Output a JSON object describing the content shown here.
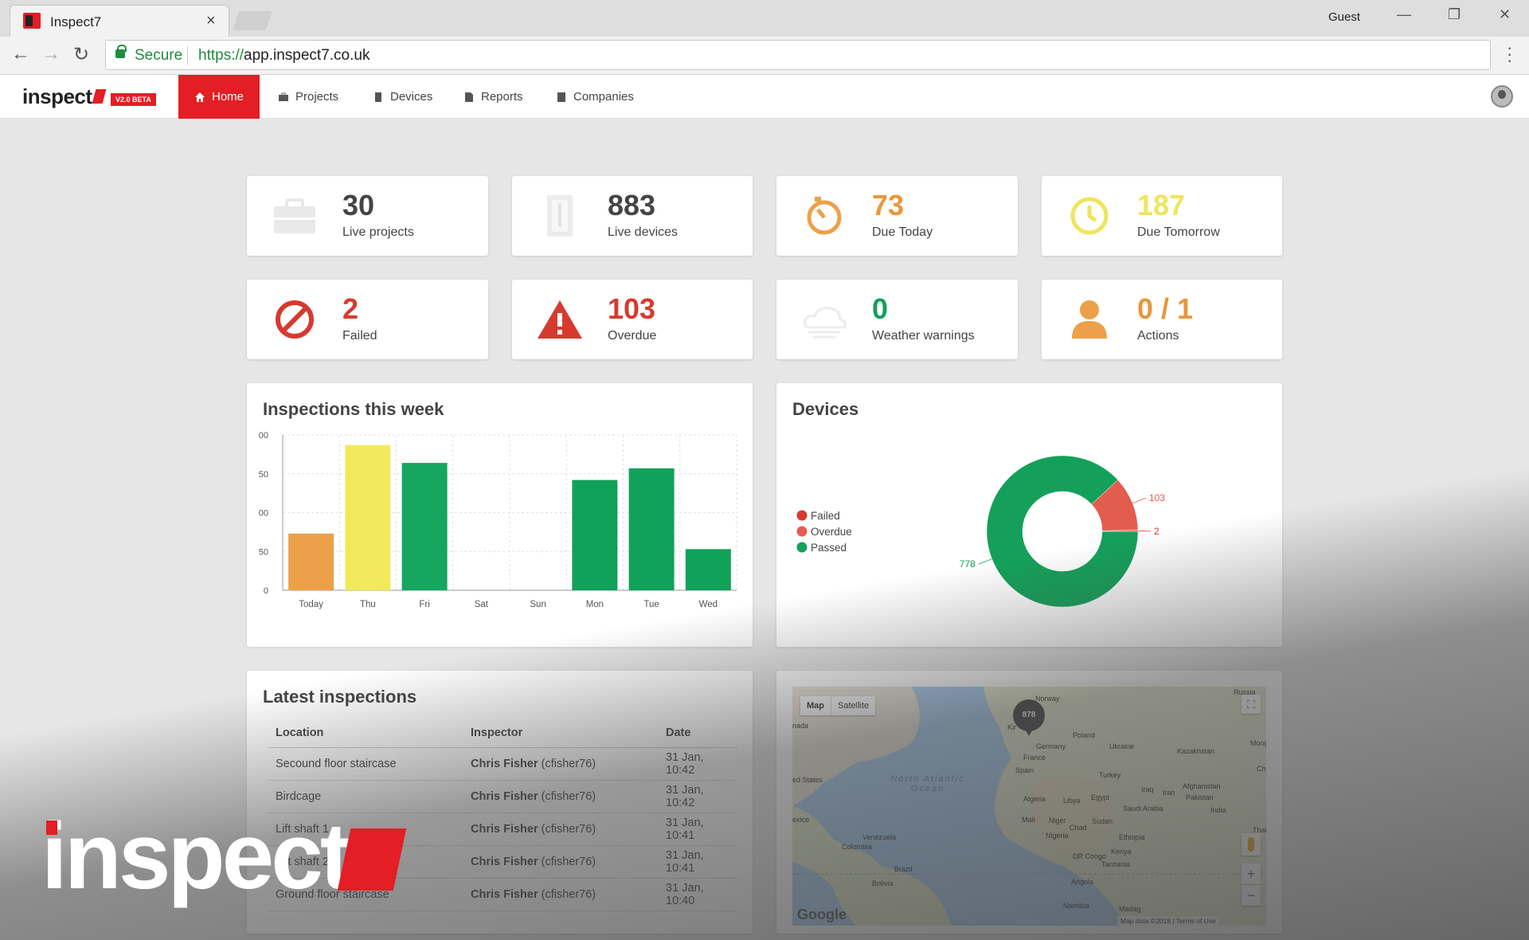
{
  "browser": {
    "tab_title": "Inspect7",
    "tab_close": "×",
    "profile": "Guest",
    "secure_label": "Secure",
    "url_scheme": "https://",
    "url_host": "app.inspect7.co.uk"
  },
  "app": {
    "logo": "inspect",
    "beta": "V2.0 BETA",
    "nav": [
      {
        "label": "Home",
        "icon": "home-icon",
        "active": true
      },
      {
        "label": "Projects",
        "icon": "briefcase-icon"
      },
      {
        "label": "Devices",
        "icon": "device-icon"
      },
      {
        "label": "Reports",
        "icon": "file-icon"
      },
      {
        "label": "Companies",
        "icon": "building-icon"
      }
    ]
  },
  "stats": [
    {
      "value": "30",
      "label": "Live projects",
      "icon": "briefcase-icon",
      "color": "#444444"
    },
    {
      "value": "883",
      "label": "Live devices",
      "icon": "device-icon",
      "color": "#444444"
    },
    {
      "value": "73",
      "label": "Due Today",
      "icon": "timer-icon",
      "color": "#e8973a"
    },
    {
      "value": "187",
      "label": "Due Tomorrow",
      "icon": "clock-icon",
      "color": "#efe55d"
    },
    {
      "value": "2",
      "label": "Failed",
      "icon": "ban-icon",
      "color": "#d63a2f"
    },
    {
      "value": "103",
      "label": "Overdue",
      "icon": "warning-icon",
      "color": "#d63a2f"
    },
    {
      "value": "0",
      "label": "Weather warnings",
      "icon": "cloud-icon",
      "color": "#12a05a"
    },
    {
      "value": "0 / 1",
      "label": "Actions",
      "icon": "user-icon",
      "color": "#e8973a"
    }
  ],
  "inspections_week": {
    "title": "Inspections this week"
  },
  "devices_panel": {
    "title": "Devices"
  },
  "chart_data": [
    {
      "type": "bar",
      "title": "Inspections this week",
      "categories": [
        "Today",
        "Thu",
        "Fri",
        "Sat",
        "Sun",
        "Mon",
        "Tue",
        "Wed"
      ],
      "values": [
        73,
        187,
        164,
        0,
        0,
        142,
        157,
        53
      ],
      "colors": [
        "#eca04a",
        "#f2ea5c",
        "#16a65e",
        "#16a65e",
        "#16a65e",
        "#11a158",
        "#11a158",
        "#11a158"
      ],
      "ytick_labels": [
        "0",
        "50",
        "00",
        "50",
        "00"
      ],
      "ylim": [
        0,
        200
      ],
      "grid": true
    },
    {
      "type": "pie",
      "title": "Devices",
      "labels": [
        "Failed",
        "Overdue",
        "Passed"
      ],
      "values": [
        2,
        103,
        778
      ],
      "colors": [
        "#d63a2f",
        "#e35d4f",
        "#14a05a"
      ],
      "legend": "left"
    }
  ],
  "latest": {
    "title": "Latest inspections",
    "headers": [
      "Location",
      "Inspector",
      "Date"
    ],
    "rows": [
      {
        "location": "Secound floor staircase",
        "inspector": "Chris Fisher",
        "handle": "(cfisher76)",
        "date": "31 Jan, 10:42"
      },
      {
        "location": "Birdcage",
        "inspector": "Chris Fisher",
        "handle": "(cfisher76)",
        "date": "31 Jan, 10:42"
      },
      {
        "location": "Lift shaft 1",
        "inspector": "Chris Fisher",
        "handle": "(cfisher76)",
        "date": "31 Jan, 10:41"
      },
      {
        "location": "Lift shaft 2",
        "inspector": "Chris Fisher",
        "handle": "(cfisher76)",
        "date": "31 Jan, 10:41"
      },
      {
        "location": "Ground floor staircase",
        "inspector": "Chris Fisher",
        "handle": "(cfisher76)",
        "date": "31 Jan, 10:40"
      }
    ]
  },
  "map": {
    "type_map": "Map",
    "type_satellite": "Satellite",
    "marker": "878",
    "ocean": "North Atlantic Ocean",
    "labels": [
      "Norway",
      "Poland",
      "Ukraine",
      "Kazakhstan",
      "Germany",
      "France",
      "Spain",
      "Turkey",
      "Iraq",
      "Iran",
      "Afghanistan",
      "Pakistan",
      "India",
      "Algeria",
      "Libya",
      "Egypt",
      "Saudi Arabia",
      "Mali",
      "Niger",
      "Chad",
      "Sudan",
      "Nigeria",
      "Ethiopia",
      "Venezuela",
      "Colombia",
      "Brazil",
      "Bolivia",
      "DR Congo",
      "Kenya",
      "Tanzania",
      "Angola",
      "Namibia",
      "Madag",
      "Russia",
      "Mong",
      "Chi",
      "Thail",
      "ed States",
      "exico",
      "nada",
      "Kir"
    ],
    "zoom_in": "+",
    "zoom_out": "−",
    "attribution": "Map data ©2018",
    "terms": "Terms of Use",
    "google": "Google"
  },
  "watermark": "inspect"
}
